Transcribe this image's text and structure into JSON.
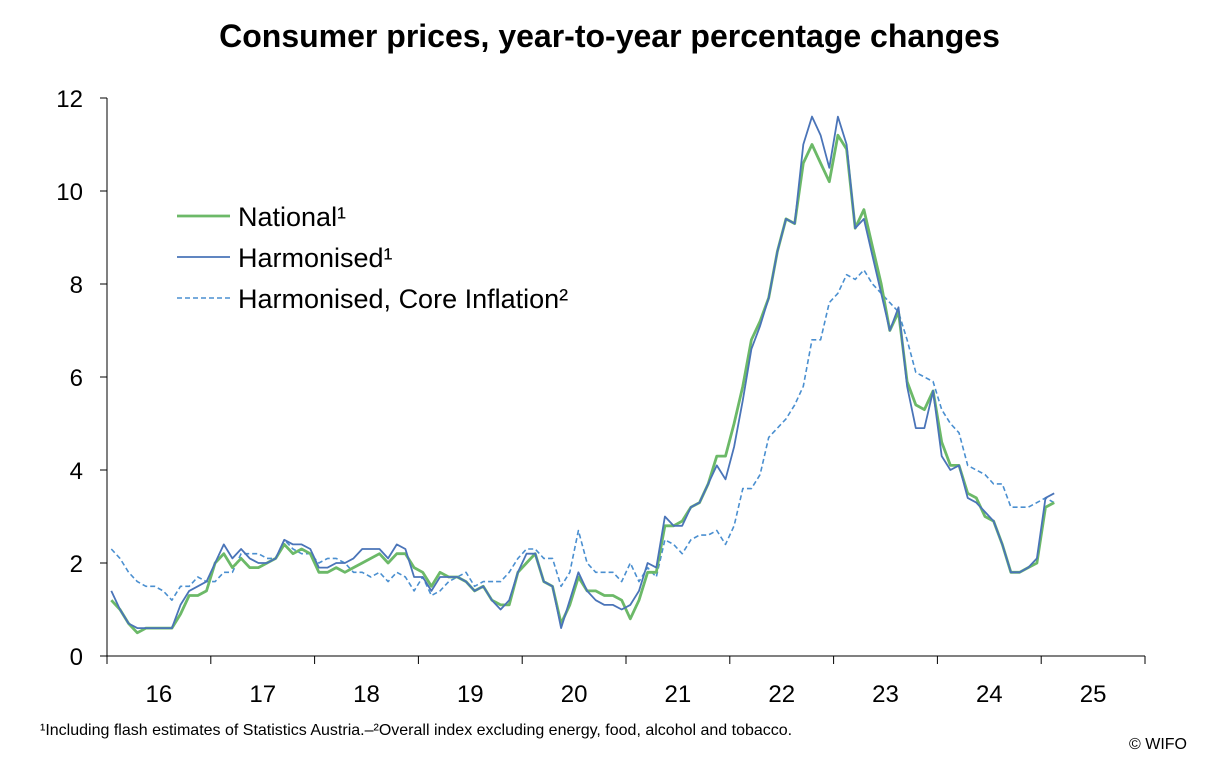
{
  "chart_data": {
    "type": "line",
    "title": "Consumer prices, year-to-year percentage changes",
    "xlabel": "",
    "ylabel": "",
    "ylim": [
      0,
      12
    ],
    "yticks": [
      0,
      2,
      4,
      6,
      8,
      10,
      12
    ],
    "x_start": 2016.0,
    "x_step_months": 1,
    "x_tick_labels": [
      "16",
      "17",
      "18",
      "19",
      "20",
      "21",
      "22",
      "23",
      "24",
      "25"
    ],
    "legend": {
      "position": "upper-left"
    },
    "series": [
      {
        "name": "National¹",
        "color": "#6cb968",
        "style": "solid",
        "values": [
          1.2,
          1.0,
          0.7,
          0.5,
          0.6,
          0.6,
          0.6,
          0.6,
          0.9,
          1.3,
          1.3,
          1.4,
          2.0,
          2.2,
          1.9,
          2.1,
          1.9,
          1.9,
          2.0,
          2.1,
          2.4,
          2.2,
          2.3,
          2.2,
          1.8,
          1.8,
          1.9,
          1.8,
          1.9,
          2.0,
          2.1,
          2.2,
          2.0,
          2.2,
          2.2,
          1.9,
          1.8,
          1.5,
          1.8,
          1.7,
          1.7,
          1.6,
          1.4,
          1.5,
          1.2,
          1.1,
          1.1,
          1.8,
          2.0,
          2.2,
          1.6,
          1.5,
          0.7,
          1.1,
          1.7,
          1.4,
          1.4,
          1.3,
          1.3,
          1.2,
          0.8,
          1.2,
          1.8,
          1.8,
          2.8,
          2.8,
          2.9,
          3.2,
          3.3,
          3.7,
          4.3,
          4.3,
          5.0,
          5.8,
          6.8,
          7.2,
          7.7,
          8.7,
          9.4,
          9.3,
          10.6,
          11.0,
          10.6,
          10.2,
          11.2,
          10.9,
          9.2,
          9.6,
          8.8,
          8.0,
          7.0,
          7.4,
          5.9,
          5.4,
          5.3,
          5.7,
          4.6,
          4.1,
          4.1,
          3.5,
          3.4,
          3.0,
          2.9,
          2.4,
          1.8,
          1.8,
          1.9,
          2.0,
          3.2,
          3.3
        ],
        "last_label": ""
      },
      {
        "name": "Harmonised¹",
        "color": "#4a74b8",
        "style": "solid",
        "values": [
          1.4,
          1.0,
          0.7,
          0.6,
          0.6,
          0.6,
          0.6,
          0.6,
          1.1,
          1.4,
          1.5,
          1.6,
          2.0,
          2.4,
          2.1,
          2.3,
          2.1,
          2.0,
          2.0,
          2.1,
          2.5,
          2.4,
          2.4,
          2.3,
          1.9,
          1.9,
          2.0,
          2.0,
          2.1,
          2.3,
          2.3,
          2.3,
          2.1,
          2.4,
          2.3,
          1.7,
          1.7,
          1.4,
          1.7,
          1.7,
          1.7,
          1.6,
          1.4,
          1.5,
          1.2,
          1.0,
          1.2,
          1.8,
          2.2,
          2.2,
          1.6,
          1.5,
          0.6,
          1.2,
          1.8,
          1.4,
          1.2,
          1.1,
          1.1,
          1.0,
          1.1,
          1.4,
          2.0,
          1.9,
          3.0,
          2.8,
          2.8,
          3.2,
          3.3,
          3.7,
          4.1,
          3.8,
          4.5,
          5.5,
          6.6,
          7.1,
          7.7,
          8.7,
          9.4,
          9.3,
          11.0,
          11.6,
          11.2,
          10.5,
          11.6,
          11.0,
          9.2,
          9.4,
          8.6,
          7.8,
          7.0,
          7.5,
          5.8,
          4.9,
          4.9,
          5.7,
          4.3,
          4.0,
          4.1,
          3.4,
          3.3,
          3.1,
          2.9,
          2.4,
          1.8,
          1.8,
          1.9,
          2.1,
          3.4,
          3.5
        ]
      },
      {
        "name": "Harmonised, Core Inflation²",
        "color": "#4a8fd0",
        "style": "dashed",
        "values": [
          2.3,
          2.1,
          1.8,
          1.6,
          1.5,
          1.5,
          1.4,
          1.2,
          1.5,
          1.5,
          1.7,
          1.6,
          1.6,
          1.8,
          1.8,
          2.2,
          2.2,
          2.2,
          2.1,
          2.1,
          2.5,
          2.3,
          2.2,
          2.2,
          2.0,
          2.1,
          2.1,
          2.0,
          1.8,
          1.8,
          1.7,
          1.8,
          1.6,
          1.8,
          1.7,
          1.4,
          1.7,
          1.3,
          1.4,
          1.6,
          1.7,
          1.8,
          1.5,
          1.6,
          1.6,
          1.6,
          1.8,
          2.1,
          2.3,
          2.3,
          2.1,
          2.1,
          1.5,
          1.8,
          2.7,
          2.0,
          1.8,
          1.8,
          1.8,
          1.6,
          2.0,
          1.6,
          1.9,
          1.7,
          2.5,
          2.4,
          2.2,
          2.5,
          2.6,
          2.6,
          2.7,
          2.4,
          2.8,
          3.6,
          3.6,
          3.9,
          4.7,
          4.9,
          5.1,
          5.4,
          5.8,
          6.8,
          6.8,
          7.6,
          7.8,
          8.2,
          8.1,
          8.3,
          8.0,
          7.8,
          7.6,
          7.4,
          6.8,
          6.1,
          6.0,
          5.9,
          5.3,
          5.0,
          4.8,
          4.1,
          4.0,
          3.9,
          3.7,
          3.7,
          3.2,
          3.2,
          3.2,
          3.3,
          3.4,
          3.3
        ]
      }
    ]
  },
  "footnote": "¹Including flash estimates of Statistics Austria.–²Overall index excluding energy, food, alcohol and tobacco.",
  "copyright": "© WIFO"
}
